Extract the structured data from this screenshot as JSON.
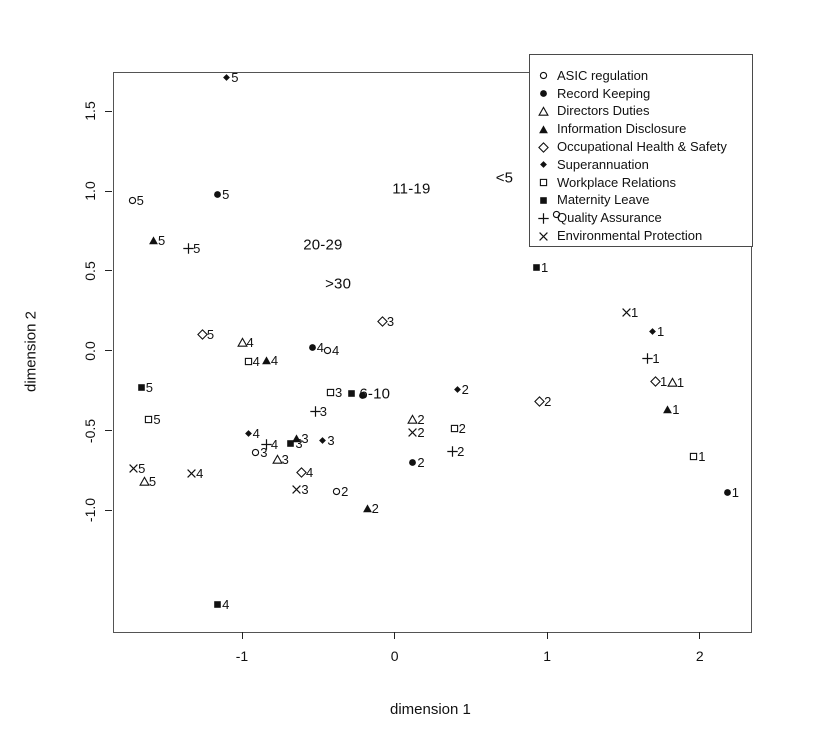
{
  "chart_data": {
    "type": "scatter",
    "xlabel": "dimension 1",
    "ylabel": "dimension 2",
    "xlim": [
      -1.85,
      2.33
    ],
    "ylim": [
      -1.75,
      1.75
    ],
    "x_ticks": [
      "-1",
      "0",
      "1",
      "2"
    ],
    "x_tick_values": [
      -1,
      0,
      1,
      2
    ],
    "y_ticks": [
      "-1.0",
      "-0.5",
      "0.0",
      "0.5",
      "1.0",
      "1.5"
    ],
    "y_tick_values": [
      -1.0,
      -0.5,
      0.0,
      0.5,
      1.0,
      1.5
    ],
    "grid": false,
    "legend_position": "top-right",
    "point_color": "#111111",
    "series": [
      {
        "name": "ASIC regulation",
        "symbol": "circle-open",
        "points": [
          {
            "x": -1.72,
            "y": 0.94,
            "label": "5"
          },
          {
            "x": -0.44,
            "y": 0.0,
            "label": "4"
          },
          {
            "x": -0.91,
            "y": -0.64,
            "label": "3"
          },
          {
            "x": -0.38,
            "y": -0.88,
            "label": "2"
          },
          {
            "x": 1.06,
            "y": 0.85,
            "label": ""
          }
        ]
      },
      {
        "name": "Record Keeping",
        "symbol": "circle-filled",
        "points": [
          {
            "x": -1.16,
            "y": 0.98,
            "label": "5"
          },
          {
            "x": -0.54,
            "y": 0.02,
            "label": "4"
          },
          {
            "x": -0.21,
            "y": -0.28,
            "label": ""
          },
          {
            "x": 0.12,
            "y": -0.7,
            "label": "2"
          },
          {
            "x": 2.18,
            "y": -0.89,
            "label": "1"
          }
        ]
      },
      {
        "name": "Directors Duties",
        "symbol": "triangle-open",
        "points": [
          {
            "x": -1.64,
            "y": -0.82,
            "label": "5"
          },
          {
            "x": -1.0,
            "y": 0.05,
            "label": "4"
          },
          {
            "x": -0.77,
            "y": -0.68,
            "label": "3"
          },
          {
            "x": 0.12,
            "y": -0.43,
            "label": "2"
          },
          {
            "x": 1.82,
            "y": -0.2,
            "label": "1"
          }
        ]
      },
      {
        "name": "Information Disclosure",
        "symbol": "triangle-filled",
        "points": [
          {
            "x": -1.58,
            "y": 0.69,
            "label": "5"
          },
          {
            "x": -0.84,
            "y": -0.06,
            "label": "4"
          },
          {
            "x": -0.64,
            "y": -0.55,
            "label": "3"
          },
          {
            "x": -0.18,
            "y": -0.99,
            "label": "2"
          },
          {
            "x": 1.79,
            "y": -0.37,
            "label": "1"
          }
        ]
      },
      {
        "name": "Occupational Health & Safety",
        "symbol": "diamond-open",
        "points": [
          {
            "x": -1.26,
            "y": 0.1,
            "label": "5"
          },
          {
            "x": -0.61,
            "y": -0.76,
            "label": "4"
          },
          {
            "x": -0.08,
            "y": 0.18,
            "label": "3"
          },
          {
            "x": 0.95,
            "y": -0.32,
            "label": "2"
          },
          {
            "x": 1.71,
            "y": -0.19,
            "label": "1"
          }
        ]
      },
      {
        "name": "Superannuation",
        "symbol": "diamond-filled-small",
        "points": [
          {
            "x": -1.1,
            "y": 1.71,
            "label": "5"
          },
          {
            "x": -0.96,
            "y": -0.52,
            "label": "4"
          },
          {
            "x": -0.47,
            "y": -0.56,
            "label": "3"
          },
          {
            "x": 0.41,
            "y": -0.24,
            "label": "2"
          },
          {
            "x": 1.69,
            "y": 0.12,
            "label": "1"
          }
        ]
      },
      {
        "name": "Workplace Relations",
        "symbol": "square-open",
        "points": [
          {
            "x": -1.61,
            "y": -0.43,
            "label": "5"
          },
          {
            "x": -0.96,
            "y": -0.07,
            "label": "4"
          },
          {
            "x": -0.42,
            "y": -0.26,
            "label": "3"
          },
          {
            "x": 0.39,
            "y": -0.49,
            "label": "2"
          },
          {
            "x": 1.96,
            "y": -0.66,
            "label": "1"
          }
        ]
      },
      {
        "name": "Maternity Leave",
        "symbol": "square-filled",
        "points": [
          {
            "x": -1.66,
            "y": -0.23,
            "label": "5"
          },
          {
            "x": -1.16,
            "y": -1.59,
            "label": "4"
          },
          {
            "x": -0.68,
            "y": -0.58,
            "label": "3"
          },
          {
            "x": -0.28,
            "y": -0.27,
            "label": ""
          },
          {
            "x": 0.93,
            "y": 0.52,
            "label": "1"
          }
        ]
      },
      {
        "name": "Quality Assurance",
        "symbol": "plus",
        "points": [
          {
            "x": -1.35,
            "y": 0.64,
            "label": "5"
          },
          {
            "x": -0.84,
            "y": -0.59,
            "label": "4"
          },
          {
            "x": -0.52,
            "y": -0.38,
            "label": "3"
          },
          {
            "x": 0.38,
            "y": -0.63,
            "label": "2"
          },
          {
            "x": 1.66,
            "y": -0.05,
            "label": "1"
          }
        ]
      },
      {
        "name": "Environmental Protection",
        "symbol": "cross",
        "points": [
          {
            "x": -1.71,
            "y": -0.74,
            "label": "5"
          },
          {
            "x": -1.33,
            "y": -0.77,
            "label": "4"
          },
          {
            "x": -0.64,
            "y": -0.87,
            "label": "3"
          },
          {
            "x": 0.12,
            "y": -0.51,
            "label": "2"
          },
          {
            "x": 1.52,
            "y": 0.24,
            "label": "1"
          }
        ]
      }
    ],
    "annotations": [
      {
        "text": "<5",
        "x": 0.72,
        "y": 1.08
      },
      {
        "text": "11-19",
        "x": 0.11,
        "y": 1.01
      },
      {
        "text": "20-29",
        "x": -0.47,
        "y": 0.66
      },
      {
        "text": ">30",
        "x": -0.37,
        "y": 0.42
      },
      {
        "text": "6-10",
        "x": -0.13,
        "y": -0.27
      }
    ]
  }
}
